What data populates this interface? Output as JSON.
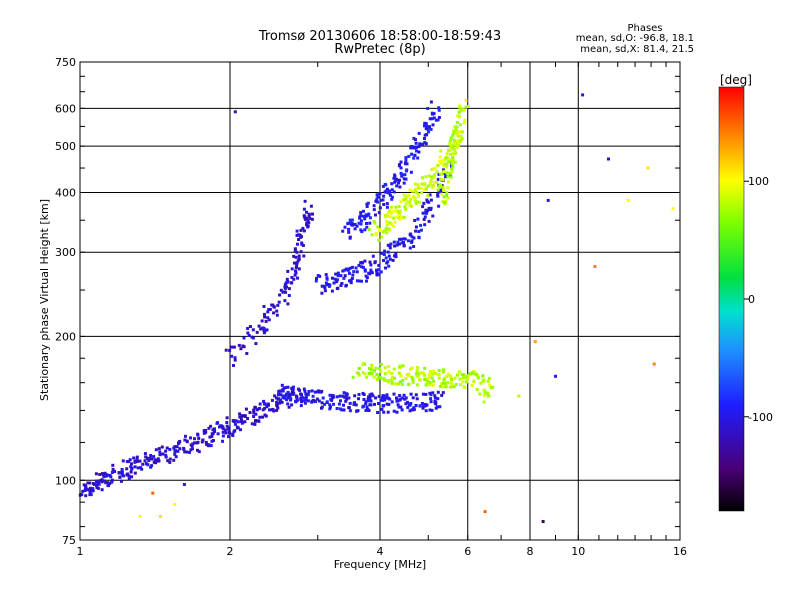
{
  "header": {
    "title_line1": "Tromsø 20130606 18:58:00-18:59:43",
    "title_line2": "RwPretec (8p)"
  },
  "stats": {
    "heading": "Phases",
    "line_o": "mean, sd,O: -96.8, 18.1",
    "line_x": "mean, sd,X: 81.4, 21.5"
  },
  "colorbar": {
    "unit_label": "[deg]",
    "range": [
      -180,
      180
    ],
    "tick_values": [
      100,
      0,
      -100
    ],
    "tick_labels": [
      "100",
      "0",
      "-100"
    ]
  },
  "chart_data": {
    "type": "scatter",
    "title": "Tromsø 20130606 18:58:00-18:59:43",
    "subtitle": "RwPretec (8p)",
    "xlabel": "Frequency [MHz]",
    "ylabel": "Stationary phase Virtual Height [km]",
    "xscale": "log",
    "yscale": "log",
    "xlim": [
      1,
      16
    ],
    "ylim": [
      75,
      750
    ],
    "grid": true,
    "x_ticks": [
      1,
      2,
      4,
      6,
      8,
      10,
      16
    ],
    "x_tick_labels": [
      "1",
      "2",
      "4",
      "6",
      "8",
      "10",
      "16"
    ],
    "y_ticks": [
      75,
      100,
      200,
      300,
      400,
      500,
      600,
      750
    ],
    "y_tick_labels": [
      "75",
      "100",
      "200",
      "300",
      "400",
      "500",
      "600",
      "750"
    ],
    "color_by": "phase [deg]",
    "traces": [
      {
        "x": [
          1.0,
          1.08,
          1.15,
          1.25,
          1.35,
          1.5,
          1.65,
          1.8,
          1.95,
          2.1,
          2.3,
          2.5,
          2.7
        ],
        "y": [
          95,
          98,
          102,
          106,
          110,
          114,
          118,
          123,
          128,
          133,
          139,
          146,
          152
        ],
        "phase": -110
      },
      {
        "x": [
          2.5,
          2.7,
          2.9,
          3.2,
          3.5,
          3.8,
          4.1,
          4.5,
          4.9,
          5.3
        ],
        "y": [
          152,
          150,
          148,
          147,
          146,
          145,
          145,
          145,
          146,
          147
        ],
        "phase": -100
      },
      {
        "x": [
          2.0,
          2.3,
          2.55,
          2.7,
          2.8,
          2.9
        ],
        "y": [
          180,
          210,
          240,
          280,
          330,
          380
        ],
        "phase": -110
      },
      {
        "x": [
          3.0,
          3.3,
          3.6,
          3.9,
          4.3,
          4.7,
          5.1,
          5.5
        ],
        "y": [
          255,
          262,
          270,
          280,
          300,
          330,
          380,
          450
        ],
        "phase": -100
      },
      {
        "x": [
          3.4,
          3.7,
          4.0,
          4.3,
          4.6,
          4.9,
          5.2
        ],
        "y": [
          330,
          350,
          380,
          420,
          470,
          530,
          600
        ],
        "phase": -95
      },
      {
        "x": [
          3.9,
          4.2,
          4.5,
          4.8,
          5.1,
          5.5,
          5.8
        ],
        "y": [
          330,
          350,
          375,
          400,
          430,
          480,
          540
        ],
        "phase": 85
      },
      {
        "x": [
          5.3,
          5.5,
          5.7,
          5.9
        ],
        "y": [
          380,
          450,
          530,
          620
        ],
        "phase": 80
      },
      {
        "x": [
          3.6,
          4.0,
          4.4,
          4.8,
          5.2,
          5.7,
          6.3,
          6.7
        ],
        "y": [
          170,
          168,
          166,
          165,
          164,
          163,
          162,
          150
        ],
        "phase": 80
      }
    ],
    "isolated_points": [
      {
        "x": 2.05,
        "y": 590,
        "phase": -110
      },
      {
        "x": 8.5,
        "y": 82,
        "phase": -150
      },
      {
        "x": 8.7,
        "y": 385,
        "phase": -100
      },
      {
        "x": 9.0,
        "y": 165,
        "phase": -100
      },
      {
        "x": 10.2,
        "y": 640,
        "phase": -100
      },
      {
        "x": 10.8,
        "y": 280,
        "phase": 140
      },
      {
        "x": 11.5,
        "y": 470,
        "phase": -110
      },
      {
        "x": 12.6,
        "y": 385,
        "phase": 100
      },
      {
        "x": 13.8,
        "y": 450,
        "phase": 110
      },
      {
        "x": 14.2,
        "y": 175,
        "phase": 140
      },
      {
        "x": 15.5,
        "y": 370,
        "phase": 100
      },
      {
        "x": 6.5,
        "y": 86,
        "phase": 150
      },
      {
        "x": 1.32,
        "y": 84,
        "phase": 100
      },
      {
        "x": 1.45,
        "y": 84,
        "phase": 110
      },
      {
        "x": 1.55,
        "y": 89,
        "phase": 100
      },
      {
        "x": 1.4,
        "y": 94,
        "phase": 150
      },
      {
        "x": 1.62,
        "y": 98,
        "phase": -100
      },
      {
        "x": 7.6,
        "y": 150,
        "phase": 80
      },
      {
        "x": 8.2,
        "y": 195,
        "phase": 130
      }
    ]
  }
}
